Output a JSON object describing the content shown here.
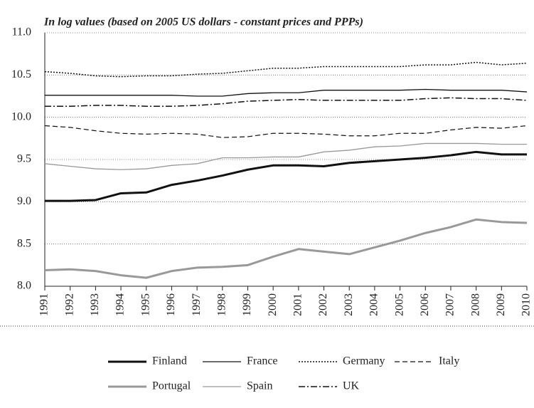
{
  "chart_data": {
    "type": "line",
    "title": "In log values (based on 2005 US dollars - constant prices and PPPs)",
    "categories": [
      "1991",
      "1992",
      "1993",
      "1994",
      "1995",
      "1996",
      "1997",
      "1998",
      "1999",
      "2000",
      "2001",
      "2002",
      "2003",
      "2004",
      "2005",
      "2006",
      "2007",
      "2008",
      "2009",
      "2010"
    ],
    "ylim": [
      8.0,
      11.0
    ],
    "yticks": [
      {
        "value": 8.0,
        "label": "8.0"
      },
      {
        "value": 8.5,
        "label": "8.5"
      },
      {
        "value": 9.0,
        "label": "9.0"
      },
      {
        "value": 9.5,
        "label": "9.5"
      },
      {
        "value": 10.0,
        "label": "10.0"
      },
      {
        "value": 10.5,
        "label": "10.5"
      },
      {
        "value": 11.0,
        "label": "11.0"
      }
    ],
    "grid": true,
    "series": [
      {
        "name": "Finland",
        "color": "#111111",
        "width": 3,
        "dash": "none",
        "values": [
          9.01,
          9.01,
          9.02,
          9.1,
          9.11,
          9.2,
          9.25,
          9.31,
          9.38,
          9.43,
          9.43,
          9.42,
          9.46,
          9.48,
          9.5,
          9.52,
          9.55,
          9.59,
          9.56,
          9.56
        ]
      },
      {
        "name": "France",
        "color": "#111111",
        "width": 1.3,
        "dash": "none",
        "values": [
          10.26,
          10.26,
          10.26,
          10.26,
          10.26,
          10.26,
          10.25,
          10.25,
          10.28,
          10.29,
          10.29,
          10.32,
          10.32,
          10.32,
          10.32,
          10.33,
          10.32,
          10.32,
          10.32,
          10.3
        ]
      },
      {
        "name": "Germany",
        "color": "#111111",
        "width": 1.5,
        "dash": "2 2",
        "values": [
          10.54,
          10.52,
          10.49,
          10.48,
          10.49,
          10.49,
          10.51,
          10.52,
          10.55,
          10.58,
          10.58,
          10.6,
          10.6,
          10.6,
          10.6,
          10.62,
          10.62,
          10.65,
          10.62,
          10.64
        ]
      },
      {
        "name": "Italy",
        "color": "#111111",
        "width": 1.2,
        "dash": "7 4",
        "values": [
          9.9,
          9.88,
          9.84,
          9.81,
          9.8,
          9.81,
          9.8,
          9.76,
          9.77,
          9.81,
          9.81,
          9.8,
          9.78,
          9.78,
          9.81,
          9.81,
          9.85,
          9.88,
          9.87,
          9.9
        ]
      },
      {
        "name": "Portugal",
        "color": "#999999",
        "width": 3,
        "dash": "none",
        "values": [
          8.19,
          8.2,
          8.18,
          8.13,
          8.1,
          8.18,
          8.22,
          8.23,
          8.25,
          8.35,
          8.44,
          8.41,
          8.38,
          8.46,
          8.54,
          8.63,
          8.7,
          8.79,
          8.76,
          8.75
        ]
      },
      {
        "name": "Spain",
        "color": "#999999",
        "width": 1.3,
        "dash": "none",
        "values": [
          9.45,
          9.42,
          9.39,
          9.38,
          9.39,
          9.43,
          9.45,
          9.52,
          9.52,
          9.53,
          9.53,
          9.59,
          9.61,
          9.65,
          9.66,
          9.69,
          9.69,
          9.69,
          9.68,
          9.68
        ]
      },
      {
        "name": "UK",
        "color": "#111111",
        "width": 1.5,
        "dash": "9 3 2 3",
        "values": [
          10.13,
          10.13,
          10.14,
          10.14,
          10.13,
          10.13,
          10.14,
          10.16,
          10.19,
          10.2,
          10.21,
          10.2,
          10.2,
          10.2,
          10.2,
          10.22,
          10.23,
          10.22,
          10.22,
          10.2
        ]
      }
    ]
  }
}
